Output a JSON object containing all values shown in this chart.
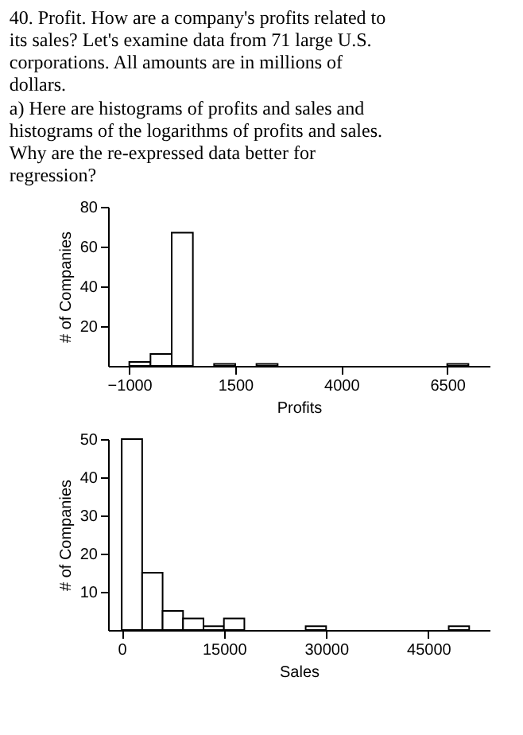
{
  "chart_data": [
    {
      "type": "histogram",
      "title": "40. Profit. How are a company's profits related to its sales? Let's examine data from 71 large U.S. corporations. All amounts are in millions of dollars.",
      "subtitle": "a) Here are histograms of profits and sales and histograms of the logarithms of profits and sales. Why are the re-expressed data better for regression?",
      "xlabel": "Profits",
      "ylabel": "# of Companies",
      "bins": [
        -1000,
        -500,
        0,
        500,
        1000,
        1500,
        2000,
        2500,
        3000,
        3500,
        4000,
        4500,
        5000,
        5500,
        6000,
        6500,
        7000
      ],
      "series": [
        {
          "color": "#ffffff",
          "values": [
            2,
            6,
            67,
            0,
            1,
            0,
            1,
            0,
            0,
            0,
            0,
            0,
            0,
            0,
            0,
            1
          ]
        }
      ],
      "xlim": [
        -1500,
        7500
      ],
      "ylim": [
        0,
        80
      ],
      "xticks": [
        -1000,
        1500,
        4000,
        6500
      ],
      "yticks": [
        20,
        40,
        60,
        80
      ],
      "grid": false
    },
    {
      "type": "histogram",
      "xlabel": "Sales",
      "ylabel": "# of Companies",
      "bins": [
        0,
        3000,
        6000,
        9000,
        12000,
        15000,
        18000,
        21000,
        24000,
        27000,
        30000,
        33000,
        36000,
        39000,
        42000,
        45000,
        48000,
        51000
      ],
      "series": [
        {
          "color": "#ffffff",
          "values": [
            50,
            15,
            5,
            3,
            1,
            3,
            0,
            0,
            0,
            1,
            0,
            0,
            0,
            0,
            0,
            0,
            1
          ]
        }
      ],
      "xlim": [
        -2000,
        54000
      ],
      "ylim": [
        0,
        50
      ],
      "xticks": [
        0,
        15000,
        30000,
        45000
      ],
      "yticks": [
        10,
        20,
        30,
        40,
        50
      ],
      "grid": false
    }
  ]
}
